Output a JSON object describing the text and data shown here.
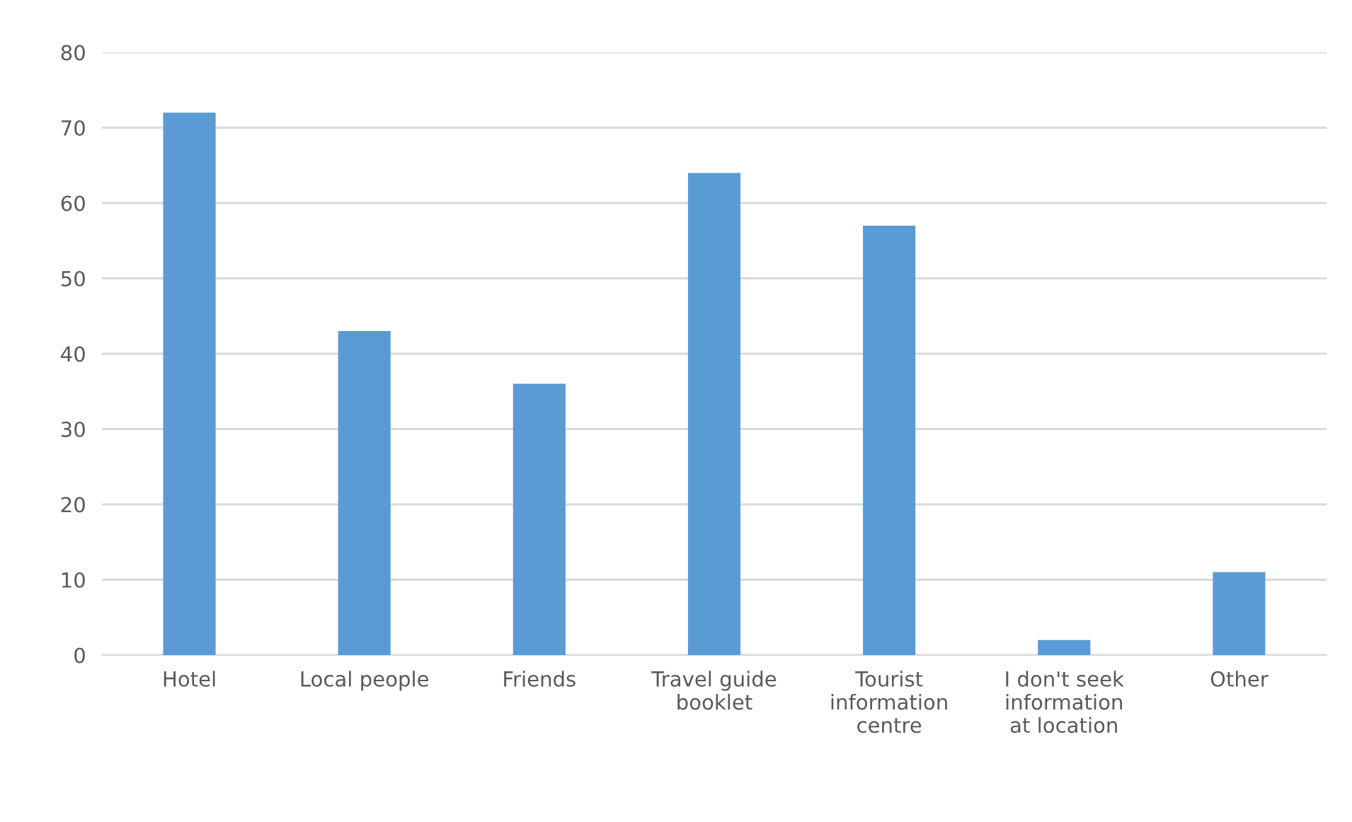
{
  "chart_data": {
    "type": "bar",
    "categories": [
      "Hotel",
      "Local people",
      "Friends",
      "Travel guide booklet",
      "Tourist information centre",
      "I don't seek information at location",
      "Other"
    ],
    "values": [
      72,
      43,
      36,
      64,
      57,
      2,
      11
    ],
    "color": "#5b9bd5",
    "ylim": [
      0,
      80
    ],
    "yticks": [
      0,
      10,
      20,
      30,
      40,
      50,
      60,
      70,
      80
    ],
    "grid": "y"
  }
}
